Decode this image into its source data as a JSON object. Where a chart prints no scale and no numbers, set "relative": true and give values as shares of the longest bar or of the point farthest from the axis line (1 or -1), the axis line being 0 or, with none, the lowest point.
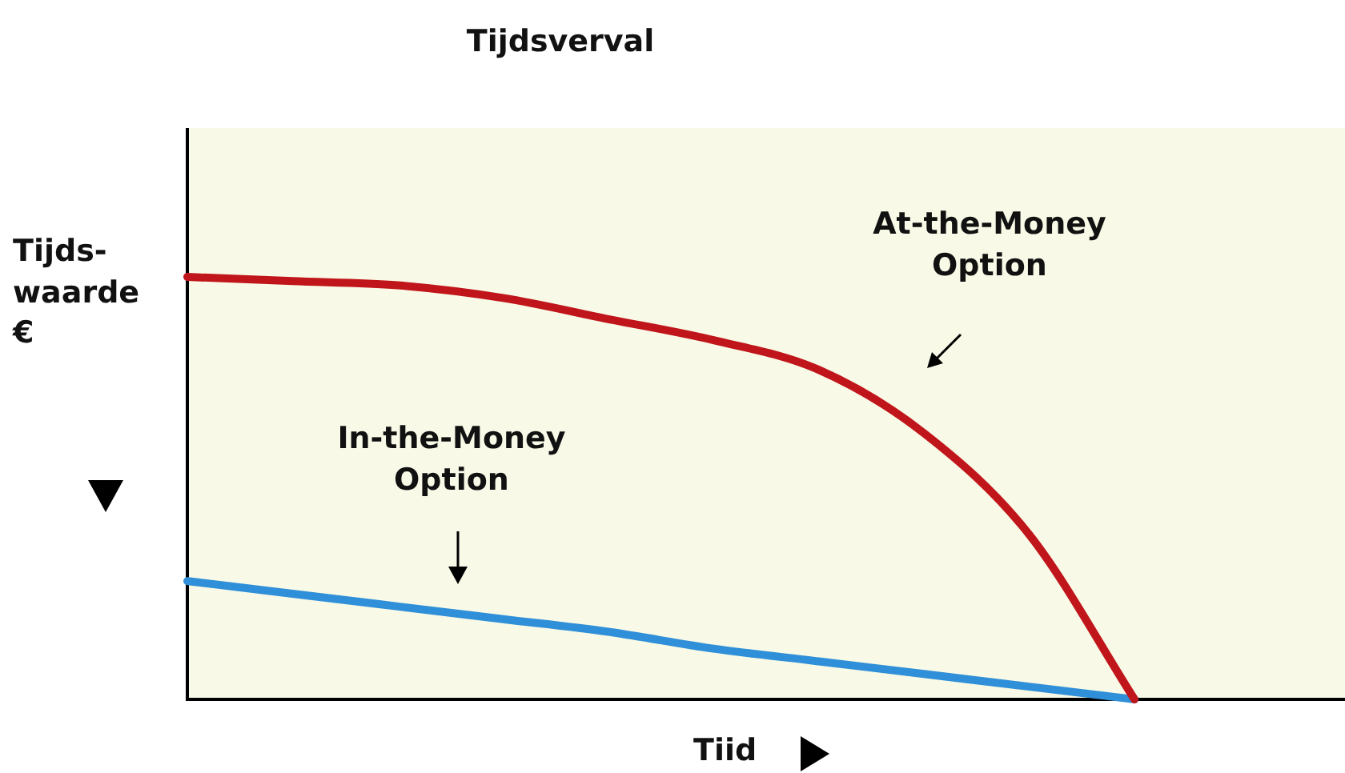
{
  "chart_data": {
    "type": "line",
    "title": "Tijdsverval",
    "xlabel": "Tiid",
    "ylabel": "Tijds-\nwaarde\n€",
    "relative": true,
    "legend": false,
    "marker": "none",
    "line_style": "solid",
    "categories": [
      null,
      null,
      null,
      null,
      null,
      null,
      null,
      null,
      null,
      null,
      null,
      null
    ],
    "series": [
      {
        "color": "#c0161b",
        "values": [
          1.0,
          0.99,
          0.98,
          0.95,
          0.9,
          0.85,
          0.78,
          0.63,
          0.39,
          0,
          null,
          null
        ]
      },
      {
        "color": "#2f8fd8",
        "values": [
          0.28,
          0.25,
          0.22,
          0.19,
          0.16,
          0.12,
          0.09,
          0.06,
          0.03,
          0,
          null,
          null
        ]
      }
    ],
    "annotations": [
      "At-the-Money\nOption",
      "In-the-Money\nOption"
    ]
  }
}
